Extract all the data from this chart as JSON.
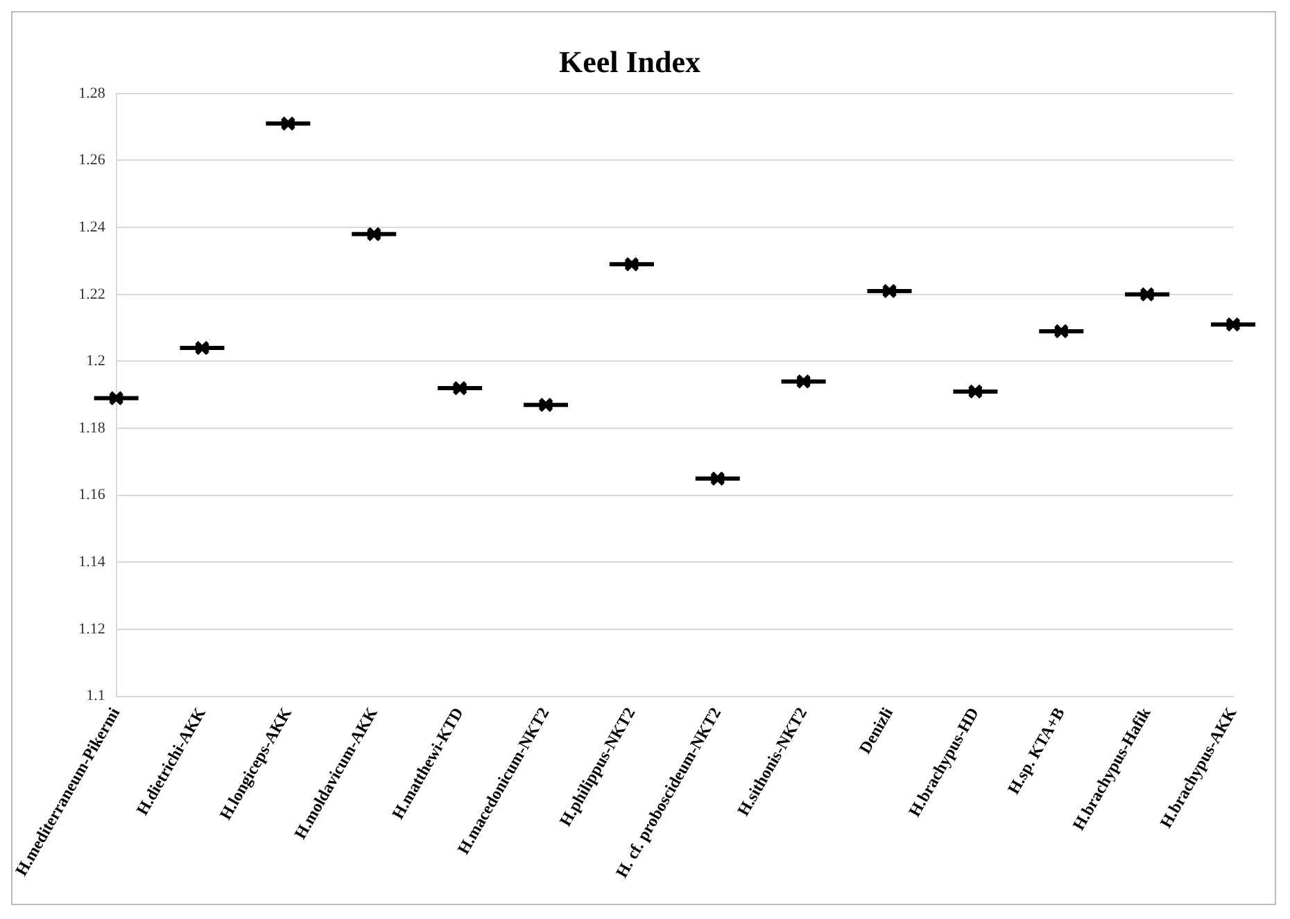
{
  "chart_data": {
    "type": "scatter",
    "title": "Keel Index",
    "categories": [
      "H.mediterraneum-Pikermi",
      "H.dietrichi-AKK",
      "H.longiceps-AKK",
      "H.moldavicum-AKK",
      "H.matthewi-KTD",
      "H.macedonicum-NKT2",
      "H.philippus-NKT2",
      "H. cf. proboscideum-NKT2",
      "H.sithonis-NKT2",
      "Denizli",
      "H.brachypus-HD",
      "H.sp. KTA+B",
      "H.brachypus-Hafik",
      "H.brachypus-AKK"
    ],
    "values": [
      1.189,
      1.204,
      1.271,
      1.238,
      1.192,
      1.187,
      1.229,
      1.165,
      1.194,
      1.221,
      1.191,
      1.209,
      1.22,
      1.211
    ],
    "color": "#000000",
    "marker": "cross",
    "ylim": [
      1.1,
      1.28
    ],
    "yticks": [
      1.1,
      1.12,
      1.14,
      1.16,
      1.18,
      1.2,
      1.22,
      1.24,
      1.26,
      1.28
    ],
    "grid": "y",
    "legend": false
  }
}
